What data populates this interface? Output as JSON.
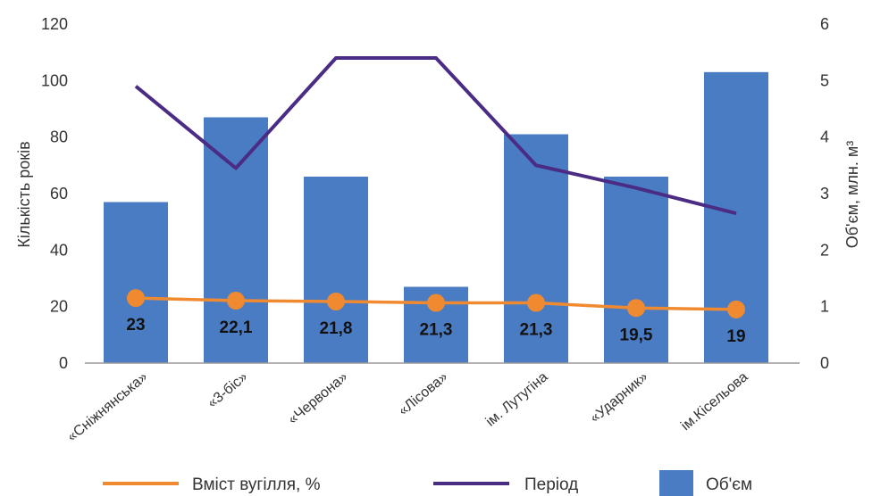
{
  "chart_data": {
    "type": "bar",
    "categories": [
      "«Сніжнянська»",
      "«3-біс»",
      "«Червона»",
      "«Лісова»",
      "ім. Лутугіна",
      "«Ударник»",
      "ім.Кісельова"
    ],
    "ylabel_left": "Кількість років",
    "ylabel_right": "Об'єм, млн. м³",
    "ylim_left": [
      0,
      120
    ],
    "ylim_right": [
      0,
      6
    ],
    "yticks_left": [
      "0",
      "20",
      "40",
      "60",
      "80",
      "100",
      "120"
    ],
    "yticks_right": [
      "0",
      "1",
      "2",
      "3",
      "4",
      "5",
      "6"
    ],
    "grid": false,
    "legend_position": "bottom",
    "series": [
      {
        "name": "Вміст вугілля, %",
        "type": "line",
        "axis": "left",
        "color": "#F08A30",
        "values": [
          23,
          22.1,
          21.8,
          21.3,
          21.3,
          19.5,
          19
        ],
        "labels": [
          "23",
          "22,1",
          "21,8",
          "21,3",
          "21,3",
          "19,5",
          "19"
        ]
      },
      {
        "name": "Період",
        "type": "line",
        "axis": "left",
        "color": "#4B2C85",
        "values": [
          98,
          69,
          108,
          108,
          70,
          62,
          53
        ]
      },
      {
        "name": "Об'єм",
        "type": "bar",
        "axis": "right",
        "color": "#4A7CC4",
        "values": [
          2.85,
          4.35,
          3.3,
          1.35,
          4.05,
          3.3,
          5.15
        ]
      }
    ]
  }
}
